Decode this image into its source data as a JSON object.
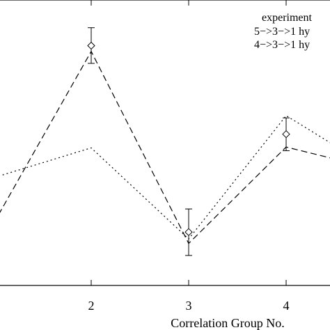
{
  "chart_data": {
    "type": "line",
    "title": "",
    "xlabel": "Correlation Group No.",
    "ylabel": "",
    "xlim": [
      1.1,
      4.45
    ],
    "ylim": [
      0,
      1
    ],
    "x_ticks": [
      2,
      3,
      4
    ],
    "x_tick_labels": [
      "2",
      "3",
      "4"
    ],
    "grid": false,
    "legend": {
      "placement": "top-right",
      "entries": [
        "experiment",
        "5−>3−>1 hy",
        "4−>3−>1 hy"
      ]
    },
    "series": [
      {
        "name": "experiment",
        "style": "diamond-errorbar",
        "points": [
          {
            "x": 2,
            "y": 0.84,
            "err_low": 0.062,
            "err_high": 0.063
          },
          {
            "x": 3,
            "y": 0.187,
            "err_low": 0.082,
            "err_high": 0.081
          },
          {
            "x": 4,
            "y": 0.53,
            "err_low": 0.058,
            "err_high": 0.057
          }
        ]
      },
      {
        "name": "5−>3−>1 hy",
        "style": "dashed",
        "x": [
          1.05,
          2,
          3,
          4,
          4.5
        ],
        "y": [
          0.248,
          0.82,
          0.147,
          0.485,
          0.443
        ]
      },
      {
        "name": "4−>3−>1 hy",
        "style": "dotted",
        "x": [
          1.05,
          2,
          3,
          4,
          4.5
        ],
        "y": [
          0.383,
          0.482,
          0.163,
          0.595,
          0.49
        ]
      }
    ]
  }
}
